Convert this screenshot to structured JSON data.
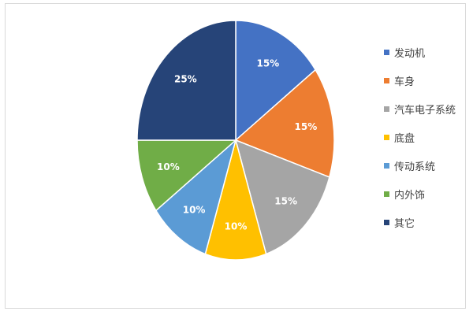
{
  "chart_data": {
    "type": "pie",
    "title": "",
    "legend_position": "right",
    "slices": [
      {
        "name": "发动机",
        "value": 15,
        "label": "15%",
        "color": "#4472c4"
      },
      {
        "name": "车身",
        "value": 15,
        "label": "15%",
        "color": "#ed7d31"
      },
      {
        "name": "汽车电子系统",
        "value": 15,
        "label": "15%",
        "color": "#a5a5a5"
      },
      {
        "name": "底盘",
        "value": 10,
        "label": "10%",
        "color": "#ffc000"
      },
      {
        "name": "传动系统",
        "value": 10,
        "label": "10%",
        "color": "#5b9bd5"
      },
      {
        "name": "内外饰",
        "value": 10,
        "label": "10%",
        "color": "#70ad47"
      },
      {
        "name": "其它",
        "value": 25,
        "label": "25%",
        "color": "#264478"
      }
    ]
  }
}
